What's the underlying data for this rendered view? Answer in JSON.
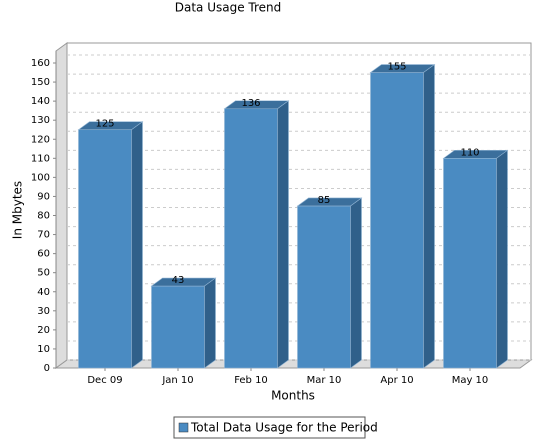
{
  "chart_data": {
    "type": "bar",
    "title": "Data Usage Trend",
    "x_label": "Months",
    "y_label": "In Mbytes",
    "categories": [
      "Dec 09",
      "Jan 10",
      "Feb 10",
      "Mar 10",
      "Apr 10",
      "May 10"
    ],
    "series": [
      {
        "name": "Total Data Usage for the Period",
        "color": "#4a8bc2",
        "values": [
          125,
          43,
          136,
          85,
          155,
          110
        ]
      }
    ],
    "ylim": [
      0,
      160
    ],
    "yticks": [
      0,
      10,
      20,
      30,
      40,
      50,
      60,
      70,
      80,
      90,
      100,
      110,
      120,
      130,
      140,
      150,
      160
    ],
    "grid": true
  }
}
